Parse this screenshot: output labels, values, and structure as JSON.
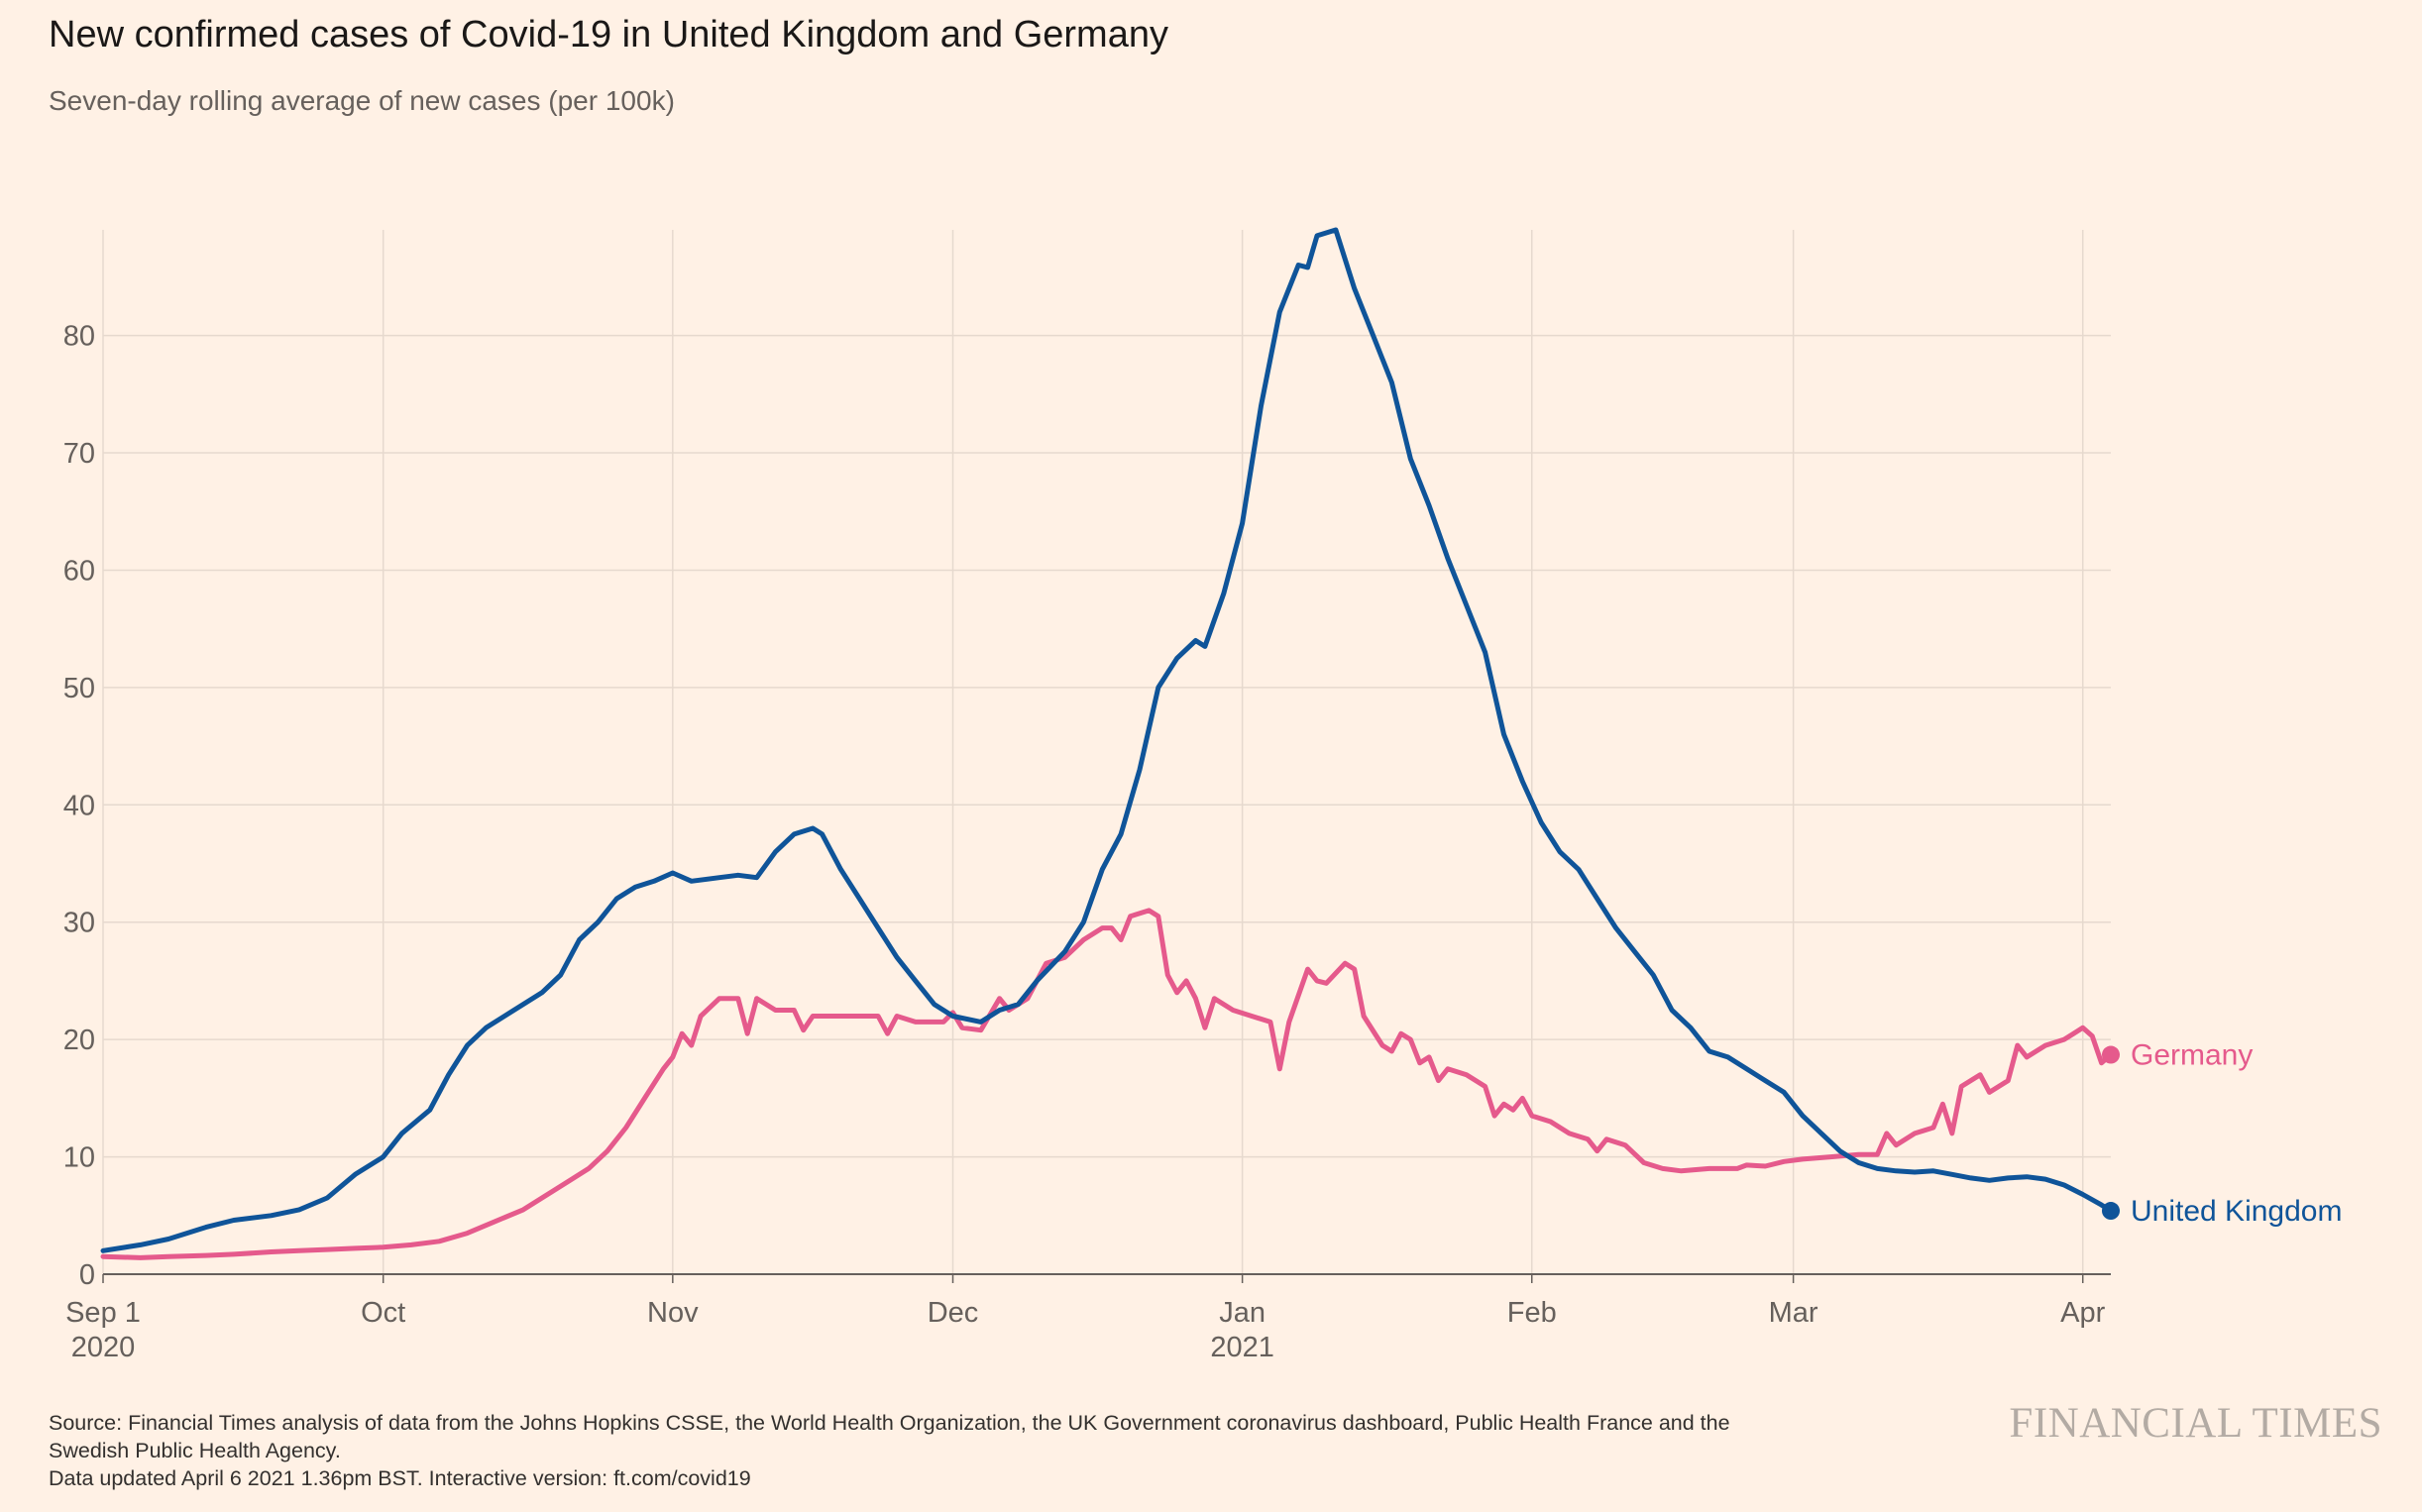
{
  "header": {
    "title": "New confirmed cases of Covid-19 in United Kingdom and Germany",
    "subtitle": "Seven-day rolling average of new cases (per 100k)"
  },
  "footer": {
    "source_line1": "Source: Financial Times analysis of data from the Johns Hopkins CSSE, the World Health Organization, the UK Government coronavirus dashboard, Public Health France and the",
    "source_line2": "Swedish Public Health Agency.",
    "updated": "Data updated April 6 2021 1.36pm BST. Interactive version: ft.com/covid19",
    "brand": "FINANCIAL TIMES"
  },
  "chart_data": {
    "type": "line",
    "title": "New confirmed cases of Covid-19 in United Kingdom and Germany",
    "subtitle": "Seven-day rolling average of new cases (per 100k)",
    "xlabel": "",
    "ylabel": "",
    "x_range": [
      "2020-09-01",
      "2021-04-04"
    ],
    "ylim": [
      0,
      89
    ],
    "y_ticks": [
      0,
      10,
      20,
      30,
      40,
      50,
      60,
      70,
      80
    ],
    "x_ticks": [
      {
        "date": "2020-09-01",
        "label": "Sep 1",
        "sublabel": "2020"
      },
      {
        "date": "2020-10-01",
        "label": "Oct",
        "sublabel": ""
      },
      {
        "date": "2020-11-01",
        "label": "Nov",
        "sublabel": ""
      },
      {
        "date": "2020-12-01",
        "label": "Dec",
        "sublabel": ""
      },
      {
        "date": "2021-01-01",
        "label": "Jan",
        "sublabel": "2021"
      },
      {
        "date": "2021-02-01",
        "label": "Feb",
        "sublabel": ""
      },
      {
        "date": "2021-03-01",
        "label": "Mar",
        "sublabel": ""
      },
      {
        "date": "2021-04-01",
        "label": "Apr",
        "sublabel": ""
      }
    ],
    "grid": "vertical at month ticks, horizontal at y ticks",
    "legend": "direct labels at line ends (right)",
    "series": [
      {
        "name": "United Kingdom",
        "color": "#0f5499",
        "points": [
          [
            "2020-09-01",
            2.0
          ],
          [
            "2020-09-05",
            2.5
          ],
          [
            "2020-09-08",
            3.0
          ],
          [
            "2020-09-12",
            4.0
          ],
          [
            "2020-09-15",
            4.6
          ],
          [
            "2020-09-19",
            5.0
          ],
          [
            "2020-09-22",
            5.5
          ],
          [
            "2020-09-25",
            6.5
          ],
          [
            "2020-09-28",
            8.5
          ],
          [
            "2020-10-01",
            10.0
          ],
          [
            "2020-10-03",
            12.0
          ],
          [
            "2020-10-06",
            14.0
          ],
          [
            "2020-10-08",
            17.0
          ],
          [
            "2020-10-10",
            19.5
          ],
          [
            "2020-10-12",
            21.0
          ],
          [
            "2020-10-15",
            22.5
          ],
          [
            "2020-10-18",
            24.0
          ],
          [
            "2020-10-20",
            25.5
          ],
          [
            "2020-10-22",
            28.5
          ],
          [
            "2020-10-24",
            30.0
          ],
          [
            "2020-10-26",
            32.0
          ],
          [
            "2020-10-28",
            33.0
          ],
          [
            "2020-10-30",
            33.5
          ],
          [
            "2020-11-01",
            34.2
          ],
          [
            "2020-11-03",
            33.5
          ],
          [
            "2020-11-06",
            33.8
          ],
          [
            "2020-11-08",
            34.0
          ],
          [
            "2020-11-10",
            33.8
          ],
          [
            "2020-11-12",
            36.0
          ],
          [
            "2020-11-14",
            37.5
          ],
          [
            "2020-11-16",
            38.0
          ],
          [
            "2020-11-17",
            37.5
          ],
          [
            "2020-11-19",
            34.5
          ],
          [
            "2020-11-21",
            32.0
          ],
          [
            "2020-11-23",
            29.5
          ],
          [
            "2020-11-25",
            27.0
          ],
          [
            "2020-11-27",
            25.0
          ],
          [
            "2020-11-29",
            23.0
          ],
          [
            "2020-12-01",
            22.0
          ],
          [
            "2020-12-04",
            21.5
          ],
          [
            "2020-12-06",
            22.5
          ],
          [
            "2020-12-08",
            23.0
          ],
          [
            "2020-12-10",
            25.0
          ],
          [
            "2020-12-13",
            27.5
          ],
          [
            "2020-12-15",
            30.0
          ],
          [
            "2020-12-17",
            34.5
          ],
          [
            "2020-12-19",
            37.5
          ],
          [
            "2020-12-21",
            43.0
          ],
          [
            "2020-12-23",
            50.0
          ],
          [
            "2020-12-25",
            52.5
          ],
          [
            "2020-12-27",
            54.0
          ],
          [
            "2020-12-28",
            53.5
          ],
          [
            "2020-12-30",
            58.0
          ],
          [
            "2021-01-01",
            64.0
          ],
          [
            "2021-01-03",
            74.0
          ],
          [
            "2021-01-05",
            82.0
          ],
          [
            "2021-01-07",
            86.0
          ],
          [
            "2021-01-08",
            85.8
          ],
          [
            "2021-01-09",
            88.5
          ],
          [
            "2021-01-11",
            89.0
          ],
          [
            "2021-01-13",
            84.0
          ],
          [
            "2021-01-15",
            80.0
          ],
          [
            "2021-01-17",
            76.0
          ],
          [
            "2021-01-19",
            69.5
          ],
          [
            "2021-01-21",
            65.5
          ],
          [
            "2021-01-23",
            61.0
          ],
          [
            "2021-01-25",
            57.0
          ],
          [
            "2021-01-27",
            53.0
          ],
          [
            "2021-01-29",
            46.0
          ],
          [
            "2021-01-31",
            42.0
          ],
          [
            "2021-02-02",
            38.5
          ],
          [
            "2021-02-04",
            36.0
          ],
          [
            "2021-02-06",
            34.5
          ],
          [
            "2021-02-08",
            32.0
          ],
          [
            "2021-02-10",
            29.5
          ],
          [
            "2021-02-12",
            27.5
          ],
          [
            "2021-02-14",
            25.5
          ],
          [
            "2021-02-16",
            22.5
          ],
          [
            "2021-02-18",
            21.0
          ],
          [
            "2021-02-20",
            19.0
          ],
          [
            "2021-02-22",
            18.5
          ],
          [
            "2021-02-24",
            17.5
          ],
          [
            "2021-02-26",
            16.5
          ],
          [
            "2021-02-28",
            15.5
          ],
          [
            "2021-03-02",
            13.5
          ],
          [
            "2021-03-04",
            12.0
          ],
          [
            "2021-03-06",
            10.5
          ],
          [
            "2021-03-08",
            9.5
          ],
          [
            "2021-03-10",
            9.0
          ],
          [
            "2021-03-12",
            8.8
          ],
          [
            "2021-03-14",
            8.7
          ],
          [
            "2021-03-16",
            8.8
          ],
          [
            "2021-03-18",
            8.5
          ],
          [
            "2021-03-20",
            8.2
          ],
          [
            "2021-03-22",
            8.0
          ],
          [
            "2021-03-24",
            8.2
          ],
          [
            "2021-03-26",
            8.3
          ],
          [
            "2021-03-28",
            8.1
          ],
          [
            "2021-03-30",
            7.6
          ],
          [
            "2021-04-01",
            6.8
          ],
          [
            "2021-04-03",
            5.9
          ],
          [
            "2021-04-04",
            5.4
          ]
        ]
      },
      {
        "name": "Germany",
        "color": "#e55a8c",
        "points": [
          [
            "2020-09-01",
            1.5
          ],
          [
            "2020-09-05",
            1.4
          ],
          [
            "2020-09-08",
            1.5
          ],
          [
            "2020-09-12",
            1.6
          ],
          [
            "2020-09-15",
            1.7
          ],
          [
            "2020-09-19",
            1.9
          ],
          [
            "2020-09-22",
            2.0
          ],
          [
            "2020-09-25",
            2.1
          ],
          [
            "2020-09-28",
            2.2
          ],
          [
            "2020-10-01",
            2.3
          ],
          [
            "2020-10-04",
            2.5
          ],
          [
            "2020-10-07",
            2.8
          ],
          [
            "2020-10-10",
            3.5
          ],
          [
            "2020-10-13",
            4.5
          ],
          [
            "2020-10-16",
            5.5
          ],
          [
            "2020-10-19",
            7.0
          ],
          [
            "2020-10-21",
            8.0
          ],
          [
            "2020-10-23",
            9.0
          ],
          [
            "2020-10-25",
            10.5
          ],
          [
            "2020-10-27",
            12.5
          ],
          [
            "2020-10-29",
            15.0
          ],
          [
            "2020-10-31",
            17.5
          ],
          [
            "2020-11-01",
            18.5
          ],
          [
            "2020-11-02",
            20.5
          ],
          [
            "2020-11-03",
            19.5
          ],
          [
            "2020-11-04",
            22.0
          ],
          [
            "2020-11-06",
            23.5
          ],
          [
            "2020-11-08",
            23.5
          ],
          [
            "2020-11-09",
            20.5
          ],
          [
            "2020-11-10",
            23.5
          ],
          [
            "2020-11-12",
            22.5
          ],
          [
            "2020-11-14",
            22.5
          ],
          [
            "2020-11-15",
            20.8
          ],
          [
            "2020-11-16",
            22.0
          ],
          [
            "2020-11-18",
            22.0
          ],
          [
            "2020-11-21",
            22.0
          ],
          [
            "2020-11-23",
            22.0
          ],
          [
            "2020-11-24",
            20.5
          ],
          [
            "2020-11-25",
            22.0
          ],
          [
            "2020-11-27",
            21.5
          ],
          [
            "2020-11-30",
            21.5
          ],
          [
            "2020-12-01",
            22.3
          ],
          [
            "2020-12-02",
            21.0
          ],
          [
            "2020-12-04",
            20.8
          ],
          [
            "2020-12-06",
            23.5
          ],
          [
            "2020-12-07",
            22.5
          ],
          [
            "2020-12-09",
            23.5
          ],
          [
            "2020-12-11",
            26.5
          ],
          [
            "2020-12-13",
            27.0
          ],
          [
            "2020-12-15",
            28.5
          ],
          [
            "2020-12-17",
            29.5
          ],
          [
            "2020-12-18",
            29.5
          ],
          [
            "2020-12-19",
            28.5
          ],
          [
            "2020-12-20",
            30.5
          ],
          [
            "2020-12-22",
            31.0
          ],
          [
            "2020-12-23",
            30.5
          ],
          [
            "2020-12-24",
            25.5
          ],
          [
            "2020-12-25",
            24.0
          ],
          [
            "2020-12-26",
            25.0
          ],
          [
            "2020-12-27",
            23.5
          ],
          [
            "2020-12-28",
            21.0
          ],
          [
            "2020-12-29",
            23.5
          ],
          [
            "2020-12-31",
            22.5
          ],
          [
            "2021-01-02",
            22.0
          ],
          [
            "2021-01-04",
            21.5
          ],
          [
            "2021-01-05",
            17.5
          ],
          [
            "2021-01-06",
            21.5
          ],
          [
            "2021-01-08",
            26.0
          ],
          [
            "2021-01-09",
            25.0
          ],
          [
            "2021-01-10",
            24.8
          ],
          [
            "2021-01-12",
            26.5
          ],
          [
            "2021-01-13",
            26.0
          ],
          [
            "2021-01-14",
            22.0
          ],
          [
            "2021-01-16",
            19.5
          ],
          [
            "2021-01-17",
            19.0
          ],
          [
            "2021-01-18",
            20.5
          ],
          [
            "2021-01-19",
            20.0
          ],
          [
            "2021-01-20",
            18.0
          ],
          [
            "2021-01-21",
            18.5
          ],
          [
            "2021-01-22",
            16.5
          ],
          [
            "2021-01-23",
            17.5
          ],
          [
            "2021-01-25",
            17.0
          ],
          [
            "2021-01-27",
            16.0
          ],
          [
            "2021-01-28",
            13.5
          ],
          [
            "2021-01-29",
            14.5
          ],
          [
            "2021-01-30",
            14.0
          ],
          [
            "2021-01-31",
            15.0
          ],
          [
            "2021-02-01",
            13.5
          ],
          [
            "2021-02-03",
            13.0
          ],
          [
            "2021-02-05",
            12.0
          ],
          [
            "2021-02-07",
            11.5
          ],
          [
            "2021-02-08",
            10.5
          ],
          [
            "2021-02-09",
            11.5
          ],
          [
            "2021-02-11",
            11.0
          ],
          [
            "2021-02-13",
            9.5
          ],
          [
            "2021-02-15",
            9.0
          ],
          [
            "2021-02-17",
            8.8
          ],
          [
            "2021-02-20",
            9.0
          ],
          [
            "2021-02-23",
            9.0
          ],
          [
            "2021-02-24",
            9.3
          ],
          [
            "2021-02-26",
            9.2
          ],
          [
            "2021-02-28",
            9.6
          ],
          [
            "2021-03-02",
            9.8
          ],
          [
            "2021-03-05",
            10.0
          ],
          [
            "2021-03-08",
            10.2
          ],
          [
            "2021-03-10",
            10.2
          ],
          [
            "2021-03-11",
            12.0
          ],
          [
            "2021-03-12",
            11.0
          ],
          [
            "2021-03-14",
            12.0
          ],
          [
            "2021-03-16",
            12.5
          ],
          [
            "2021-03-17",
            14.5
          ],
          [
            "2021-03-18",
            12.0
          ],
          [
            "2021-03-19",
            16.0
          ],
          [
            "2021-03-21",
            17.0
          ],
          [
            "2021-03-22",
            15.5
          ],
          [
            "2021-03-24",
            16.5
          ],
          [
            "2021-03-25",
            19.5
          ],
          [
            "2021-03-26",
            18.5
          ],
          [
            "2021-03-28",
            19.5
          ],
          [
            "2021-03-30",
            20.0
          ],
          [
            "2021-03-31",
            20.5
          ],
          [
            "2021-04-01",
            21.0
          ],
          [
            "2021-04-02",
            20.3
          ],
          [
            "2021-04-03",
            18.0
          ],
          [
            "2021-04-04",
            18.7
          ]
        ]
      }
    ]
  }
}
